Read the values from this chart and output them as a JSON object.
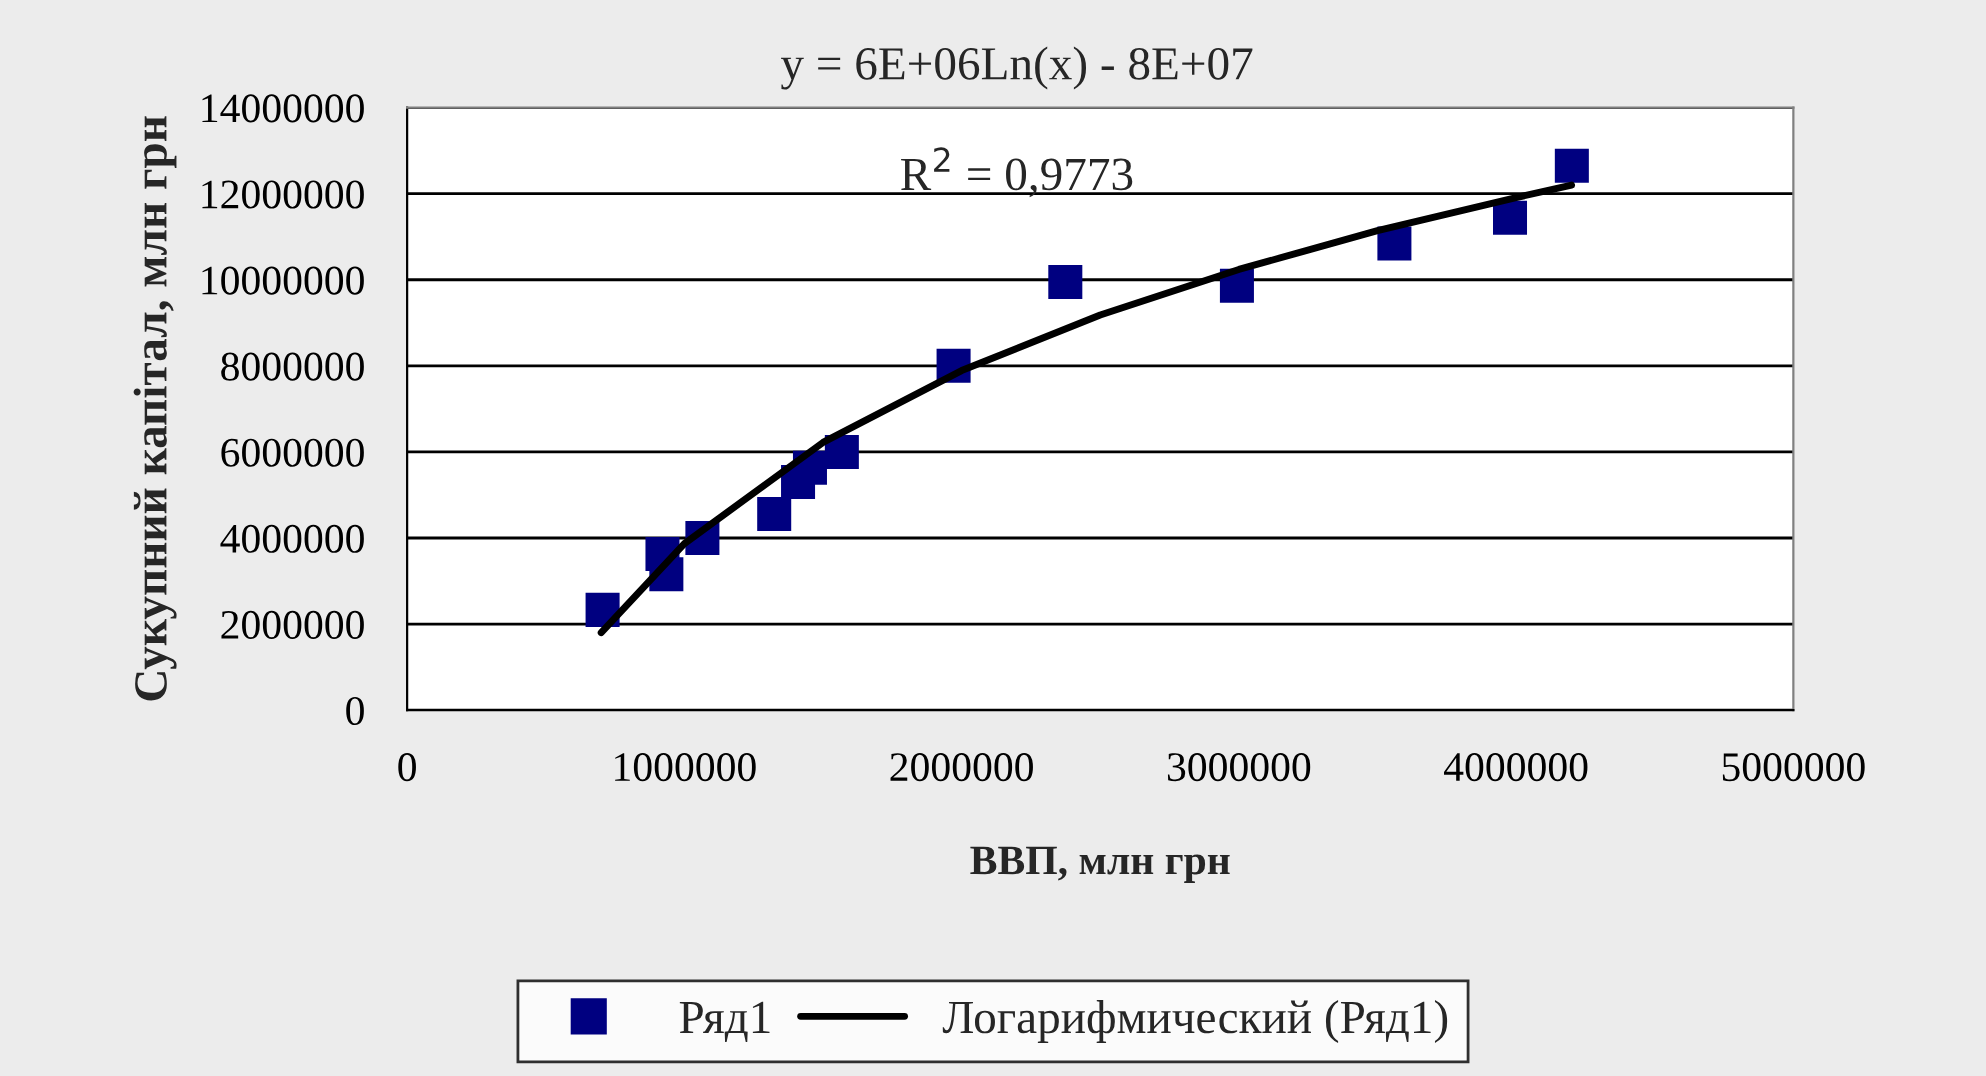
{
  "chart_data": {
    "type": "scatter",
    "xlabel": "ВВП, млн грн",
    "ylabel": "Сукупний капітал, млн грн",
    "annotations": [
      "y = 6E+06Ln(x) - 8E+07",
      "R$^{2}$ = 0,9773"
    ],
    "xlim": [
      0,
      5000000
    ],
    "xticks": [
      0,
      1000000,
      2000000,
      3000000,
      4000000,
      5000000
    ],
    "ylim": [
      0,
      14000000
    ],
    "yticks": [
      0,
      2000000,
      4000000,
      6000000,
      8000000,
      10000000,
      12000000,
      14000000
    ],
    "grid": "y",
    "legend": "bottom",
    "series": [
      {
        "name": "Ряд1",
        "marker": "square",
        "color": "#000080",
        "x": [
          705000,
          921000,
          935000,
          1065000,
          1324000,
          1410000,
          1453000,
          1568000,
          1971000,
          2374000,
          2993000,
          3561000,
          3978000,
          4201000
        ],
        "values": [
          2330000,
          3630000,
          3160000,
          4000000,
          4560000,
          5300000,
          5630000,
          6000000,
          8000000,
          9950000,
          9860000,
          10840000,
          11440000,
          12650000
        ]
      },
      {
        "name": "Логарифмический (Ряд1)",
        "type": "line",
        "marker": "none",
        "line_style": "solid",
        "color": "#000000",
        "x": [
          700000,
          1000000,
          1500000,
          2000000,
          2500000,
          3000000,
          3500000,
          4000000,
          4200000
        ],
        "values": [
          1800000,
          3870000,
          6220000,
          7890000,
          9180000,
          10240000,
          11140000,
          11910000,
          12200000
        ]
      }
    ]
  }
}
